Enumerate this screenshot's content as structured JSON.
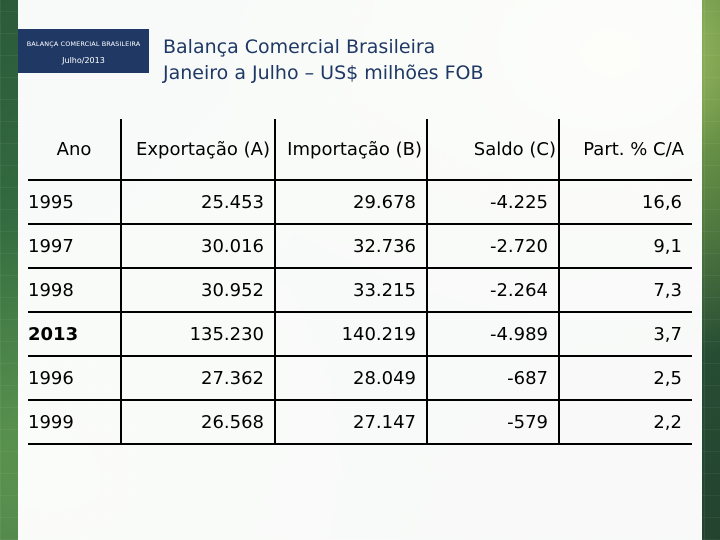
{
  "badge": {
    "title": "BALANÇA COMERCIAL BRASILEIRA",
    "date": "Julho/2013"
  },
  "title": {
    "line1": "Balança Comercial Brasileira",
    "line2": "Janeiro a Julho – US$ milhões FOB"
  },
  "colors": {
    "badge_bg": "#1f3864",
    "title_text": "#1f3864",
    "background_green": "#3c7a44"
  },
  "table": {
    "headers": [
      "Ano",
      "Exportação (A)",
      "Importação (B)",
      "Saldo (C)",
      "Part. % C/A"
    ],
    "rows": [
      [
        "1995",
        "25.453",
        "29.678",
        "-4.225",
        "16,6"
      ],
      [
        "1997",
        "30.016",
        "32.736",
        "-2.720",
        "9,1"
      ],
      [
        "1998",
        "30.952",
        "33.215",
        "-2.264",
        "7,3"
      ],
      [
        "2013",
        "135.230",
        "140.219",
        "-4.989",
        "3,7"
      ],
      [
        "1996",
        "27.362",
        "28.049",
        "-687",
        "2,5"
      ],
      [
        "1999",
        "26.568",
        "27.147",
        "-579",
        "2,2"
      ]
    ]
  }
}
